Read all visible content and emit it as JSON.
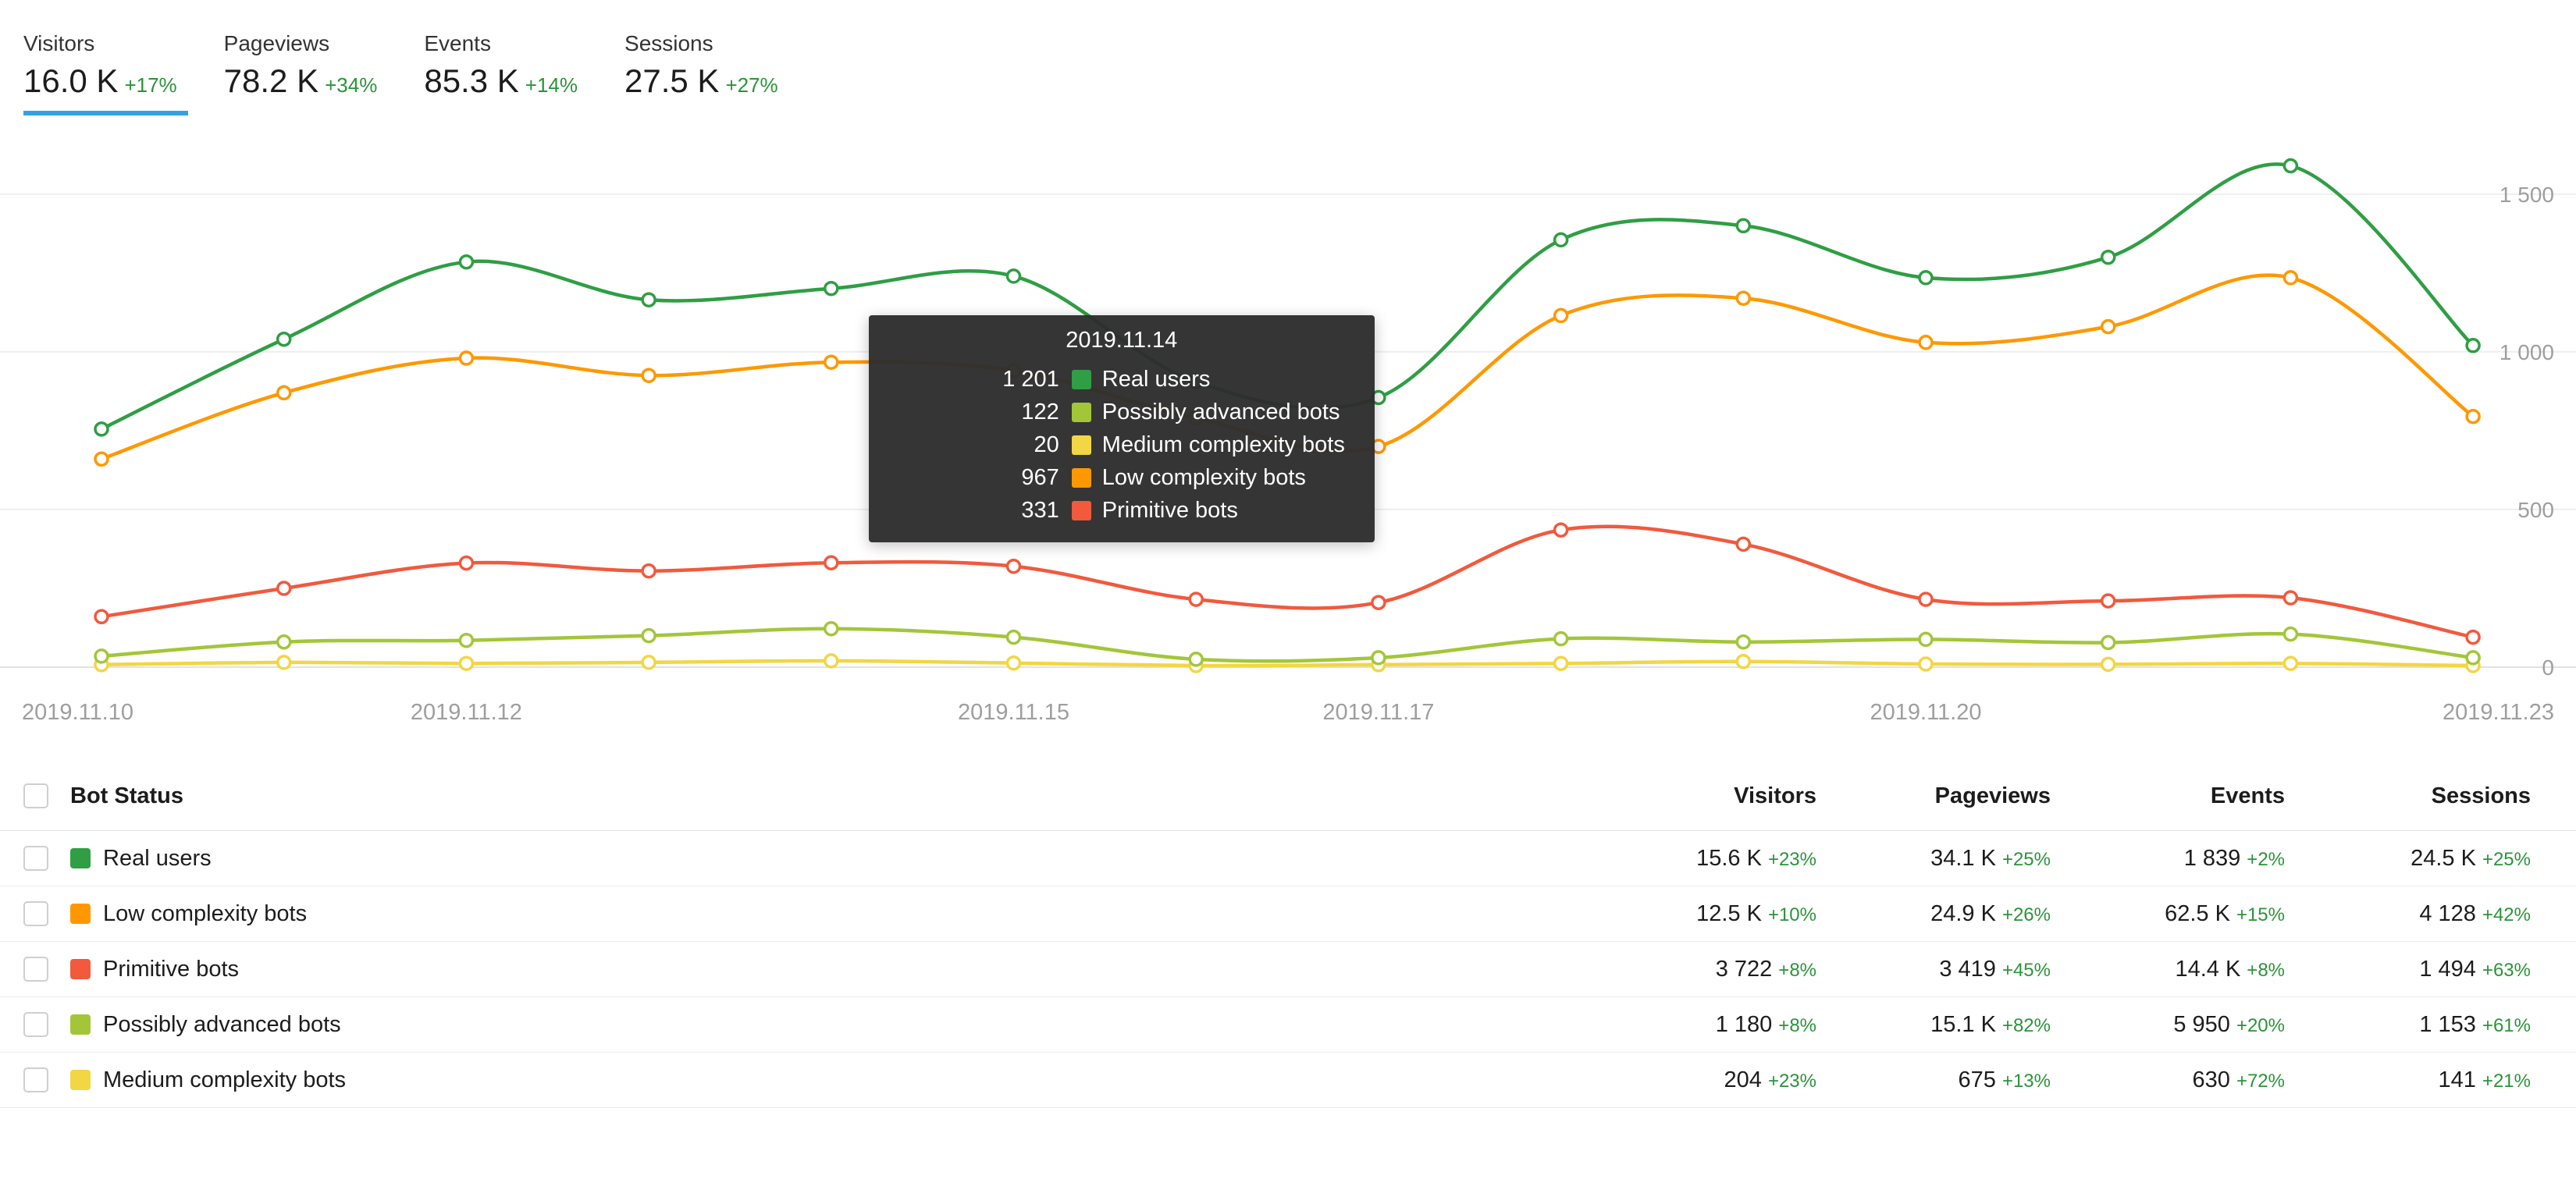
{
  "colors": {
    "accent_blue": "#35a0e0",
    "positive_green": "#2b9339",
    "grid_line": "#eeeeee",
    "axis_label": "#9e9e9e",
    "tooltip_background": "#2d2d2d"
  },
  "metrics": {
    "tabs": [
      {
        "label": "Visitors",
        "value": "16.0 K",
        "delta": "+17%",
        "selected": true
      },
      {
        "label": "Pageviews",
        "value": "78.2 K",
        "delta": "+34%",
        "selected": false
      },
      {
        "label": "Events",
        "value": "85.3 K",
        "delta": "+14%",
        "selected": false
      },
      {
        "label": "Sessions",
        "value": "27.5 K",
        "delta": "+27%",
        "selected": false
      }
    ]
  },
  "chart_data": {
    "type": "line",
    "title": "",
    "xlabel": "",
    "ylabel": "",
    "grid": true,
    "legend_position": "none",
    "ylim": [
      0,
      1650
    ],
    "yticks": [
      0,
      500,
      1000,
      1500
    ],
    "ytick_labels": [
      "0",
      "500",
      "1 000",
      "1 500"
    ],
    "x": [
      "2019.11.10",
      "2019.11.11",
      "2019.11.12",
      "2019.11.13",
      "2019.11.14",
      "2019.11.15",
      "2019.11.16",
      "2019.11.17",
      "2019.11.18",
      "2019.11.19",
      "2019.11.20",
      "2019.11.21",
      "2019.11.22",
      "2019.11.23"
    ],
    "x_tick_labels": [
      {
        "index": 0,
        "label": "2019.11.10"
      },
      {
        "index": 2,
        "label": "2019.11.12"
      },
      {
        "index": 5,
        "label": "2019.11.15"
      },
      {
        "index": 7,
        "label": "2019.11.17"
      },
      {
        "index": 10,
        "label": "2019.11.20"
      },
      {
        "index": 13,
        "label": "2019.11.23"
      }
    ],
    "series": [
      {
        "name": "Real users",
        "color": "#2f9e44",
        "values": [
          755,
          1040,
          1285,
          1165,
          1201,
          1240,
          905,
          855,
          1355,
          1400,
          1235,
          1300,
          1590,
          1020
        ]
      },
      {
        "name": "Low complexity bots",
        "color": "#ff9800",
        "values": [
          660,
          870,
          980,
          925,
          967,
          940,
          790,
          700,
          1115,
          1170,
          1030,
          1080,
          1235,
          795
        ]
      },
      {
        "name": "Primitive bots",
        "color": "#f2593d",
        "values": [
          160,
          250,
          330,
          305,
          331,
          320,
          215,
          205,
          435,
          390,
          215,
          210,
          220,
          95
        ]
      },
      {
        "name": "Possibly advanced bots",
        "color": "#a3c639",
        "values": [
          35,
          80,
          85,
          100,
          122,
          95,
          25,
          30,
          90,
          80,
          88,
          78,
          105,
          30
        ]
      },
      {
        "name": "Medium complexity bots",
        "color": "#f2d643",
        "values": [
          8,
          15,
          12,
          15,
          20,
          13,
          5,
          8,
          12,
          18,
          10,
          9,
          12,
          5
        ]
      }
    ],
    "tooltip": {
      "date": "2019.11.14",
      "day_index": 4,
      "rows": [
        {
          "value": "1 201",
          "label": "Real users",
          "color": "#2f9e44"
        },
        {
          "value": "122",
          "label": "Possibly advanced bots",
          "color": "#a3c639"
        },
        {
          "value": "20",
          "label": "Medium complexity bots",
          "color": "#f2d643"
        },
        {
          "value": "967",
          "label": "Low complexity bots",
          "color": "#ff9800"
        },
        {
          "value": "331",
          "label": "Primitive bots",
          "color": "#f2593d"
        }
      ]
    }
  },
  "table": {
    "name_header": "Bot Status",
    "columns": [
      "Visitors",
      "Pageviews",
      "Events",
      "Sessions"
    ],
    "rows": [
      {
        "name": "Real users",
        "color": "#2f9e44",
        "cells": [
          [
            "15.6 K",
            "+23%"
          ],
          [
            "34.1 K",
            "+25%"
          ],
          [
            "1 839",
            "+2%"
          ],
          [
            "24.5 K",
            "+25%"
          ]
        ]
      },
      {
        "name": "Low complexity bots",
        "color": "#ff9800",
        "cells": [
          [
            "12.5 K",
            "+10%"
          ],
          [
            "24.9 K",
            "+26%"
          ],
          [
            "62.5 K",
            "+15%"
          ],
          [
            "4 128",
            "+42%"
          ]
        ]
      },
      {
        "name": "Primitive bots",
        "color": "#f2593d",
        "cells": [
          [
            "3 722",
            "+8%"
          ],
          [
            "3 419",
            "+45%"
          ],
          [
            "14.4 K",
            "+8%"
          ],
          [
            "1 494",
            "+63%"
          ]
        ]
      },
      {
        "name": "Possibly advanced bots",
        "color": "#a3c639",
        "cells": [
          [
            "1 180",
            "+8%"
          ],
          [
            "15.1 K",
            "+82%"
          ],
          [
            "5 950",
            "+20%"
          ],
          [
            "1 153",
            "+61%"
          ]
        ]
      },
      {
        "name": "Medium complexity bots",
        "color": "#f2d643",
        "cells": [
          [
            "204",
            "+23%"
          ],
          [
            "675",
            "+13%"
          ],
          [
            "630",
            "+72%"
          ],
          [
            "141",
            "+21%"
          ]
        ]
      }
    ]
  }
}
